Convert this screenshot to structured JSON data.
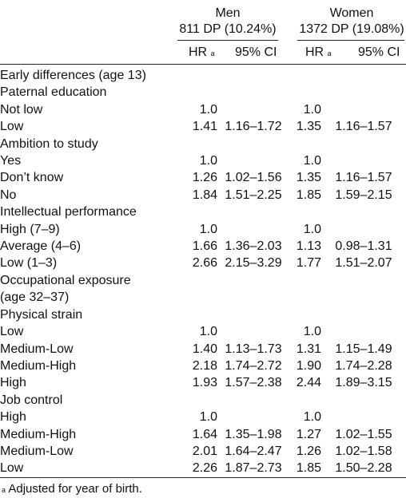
{
  "header": {
    "men": {
      "label": "Men",
      "sub": "811 DP (10.24%)"
    },
    "women": {
      "label": "Women",
      "sub": "1372 DP (19.08%)"
    },
    "hr": "HR",
    "hr_sup": "a",
    "ci": "95% CI"
  },
  "rows": [
    {
      "label": "Early differences (age 13)",
      "indent": 0,
      "m_hr": "",
      "m_ci": "",
      "w_hr": "",
      "w_ci": ""
    },
    {
      "label": "Paternal education",
      "indent": 1,
      "m_hr": "",
      "m_ci": "",
      "w_hr": "",
      "w_ci": ""
    },
    {
      "label": "Not low",
      "indent": 1,
      "m_hr": "1.0",
      "m_ci": "",
      "w_hr": "1.0",
      "w_ci": ""
    },
    {
      "label": "Low",
      "indent": 1,
      "m_hr": "1.41",
      "m_ci": "1.16–1.72",
      "w_hr": "1.35",
      "w_ci": "1.16–1.57"
    },
    {
      "label": "Ambition to study",
      "indent": 0,
      "m_hr": "",
      "m_ci": "",
      "w_hr": "",
      "w_ci": ""
    },
    {
      "label": "Yes",
      "indent": 1,
      "m_hr": "1.0",
      "m_ci": "",
      "w_hr": "1.0",
      "w_ci": ""
    },
    {
      "label": "Don’t know",
      "indent": 1,
      "m_hr": "1.26",
      "m_ci": "1.02–1.56",
      "w_hr": "1.35",
      "w_ci": "1.16–1.57"
    },
    {
      "label": "No",
      "indent": 1,
      "m_hr": "1.84",
      "m_ci": "1.51–2.25",
      "w_hr": "1.85",
      "w_ci": "1.59–2.15"
    },
    {
      "label": "Intellectual performance",
      "indent": 0,
      "m_hr": "",
      "m_ci": "",
      "w_hr": "",
      "w_ci": ""
    },
    {
      "label": "High (7–9)",
      "indent": 1,
      "m_hr": "1.0",
      "m_ci": "",
      "w_hr": "1.0",
      "w_ci": ""
    },
    {
      "label": "Average (4–6)",
      "indent": 1,
      "m_hr": "1.66",
      "m_ci": "1.36–2.03",
      "w_hr": "1.13",
      "w_ci": "0.98–1.31"
    },
    {
      "label": "Low (1–3)",
      "indent": 1,
      "m_hr": "2.66",
      "m_ci": "2.15–3.29",
      "w_hr": "1.77",
      "w_ci": "1.51–2.07"
    },
    {
      "label": "Occupational exposure",
      "indent": 0,
      "m_hr": "",
      "m_ci": "",
      "w_hr": "",
      "w_ci": ""
    },
    {
      "label": "(age 32–37)",
      "indent": 0,
      "m_hr": "",
      "m_ci": "",
      "w_hr": "",
      "w_ci": ""
    },
    {
      "label": "Physical strain",
      "indent": 1,
      "m_hr": "",
      "m_ci": "",
      "w_hr": "",
      "w_ci": ""
    },
    {
      "label": "Low",
      "indent": 1,
      "m_hr": "1.0",
      "m_ci": "",
      "w_hr": "1.0",
      "w_ci": ""
    },
    {
      "label": "Medium-Low",
      "indent": 1,
      "m_hr": "1.40",
      "m_ci": "1.13–1.73",
      "w_hr": "1.31",
      "w_ci": "1.15–1.49"
    },
    {
      "label": "Medium-High",
      "indent": 1,
      "m_hr": "2.18",
      "m_ci": "1.74–2.72",
      "w_hr": "1.90",
      "w_ci": "1.74–2.28"
    },
    {
      "label": "High",
      "indent": 1,
      "m_hr": "1.93",
      "m_ci": "1.57–2.38",
      "w_hr": "2.44",
      "w_ci": "1.89–3.15"
    },
    {
      "label": "Job control",
      "indent": 0,
      "m_hr": "",
      "m_ci": "",
      "w_hr": "",
      "w_ci": ""
    },
    {
      "label": "High",
      "indent": 1,
      "m_hr": "1.0",
      "m_ci": "",
      "w_hr": "1.0",
      "w_ci": ""
    },
    {
      "label": "Medium-High",
      "indent": 1,
      "m_hr": "1.64",
      "m_ci": "1.35–1.98",
      "w_hr": "1.27",
      "w_ci": "1.02–1.55"
    },
    {
      "label": "Medium-Low",
      "indent": 1,
      "m_hr": "2.01",
      "m_ci": "1.64–2.47",
      "w_hr": "1.26",
      "w_ci": "1.02–1.58"
    },
    {
      "label": "Low",
      "indent": 1,
      "m_hr": "2.26",
      "m_ci": "1.87–2.73",
      "w_hr": "1.85",
      "w_ci": "1.50–2.28"
    }
  ],
  "footnote": {
    "sup": "a",
    "text": " Adjusted for year of birth."
  }
}
